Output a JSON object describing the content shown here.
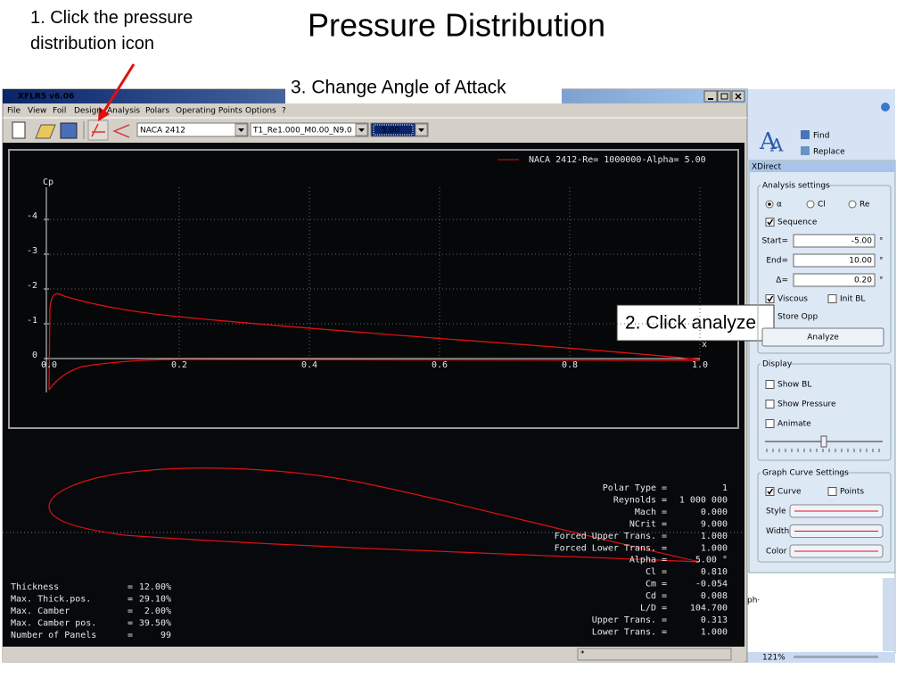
{
  "slide": {
    "title": "Pressure Distribution",
    "step1": "1. Click the pressure distribution icon",
    "step2": "2. Click analyze",
    "step3": "3. Change Angle of Attack"
  },
  "window": {
    "title": "XFLR5 v6.06",
    "menu": [
      "File",
      "View",
      "Foil",
      "Design",
      "Analysis",
      "Polars",
      "Operating Points",
      "Options",
      "?"
    ],
    "foil": "NACA 2412",
    "polar": "T1_Re1.000_M0.00_N9.0",
    "alpha": "5.00",
    "status": "*"
  },
  "plot": {
    "legend": "NACA 2412-Re= 1000000-Alpha= 5.00",
    "y_label": "Cp",
    "x_label": "x",
    "yticks": [
      "-4",
      "-3",
      "-2",
      "-1",
      "0"
    ],
    "xticks": [
      "0.0",
      "0.2",
      "0.4",
      "0.6",
      "0.8",
      "1.0"
    ]
  },
  "sep": "=",
  "foil_props": [
    [
      "Thickness",
      "12.00%"
    ],
    [
      "Max. Thick.pos.",
      "29.10%"
    ],
    [
      "Max. Camber",
      "2.00%"
    ],
    [
      "Max. Camber pos.",
      "39.50%"
    ],
    [
      "Number of Panels",
      "99"
    ]
  ],
  "results": [
    [
      "Polar Type",
      "1"
    ],
    [
      "Reynolds",
      "1 000 000"
    ],
    [
      "Mach",
      "0.000"
    ],
    [
      "NCrit",
      "9.000"
    ],
    [
      "Forced Upper Trans.",
      "1.000"
    ],
    [
      "Forced Lower Trans.",
      "1.000"
    ],
    [
      "Alpha",
      "5.00 °"
    ],
    [
      "Cl",
      "0.810"
    ],
    [
      "Cm",
      "-0.054"
    ],
    [
      "Cd",
      "0.008"
    ],
    [
      "L/D",
      "104.700"
    ],
    [
      "Upper Trans.",
      "0.313"
    ],
    [
      "Lower Trans.",
      "1.000"
    ]
  ],
  "xdirect": {
    "title": "XDirect",
    "analysis_settings": "Analysis settings",
    "radios": [
      "α",
      "Cl",
      "Re"
    ],
    "sequence": "Sequence",
    "fields": [
      [
        "Start=",
        "-5.00",
        "°"
      ],
      [
        "End=",
        "10.00",
        "°"
      ],
      [
        "Δ=",
        "0.20",
        "°"
      ]
    ],
    "viscous": "Viscous",
    "init_bl": "Init BL",
    "store_opp": "Store Opp",
    "analyze": "Analyze",
    "display": "Display",
    "display_items": [
      "Show BL",
      "Show Pressure",
      "Animate"
    ],
    "graph_settings": "Graph Curve Settings",
    "curve": "Curve",
    "points": "Points",
    "curve_props": [
      "Style",
      "Width",
      "Color"
    ]
  },
  "word": {
    "find": "Find",
    "replace": "Replace",
    "text": "ph·",
    "zoom": "121%"
  }
}
